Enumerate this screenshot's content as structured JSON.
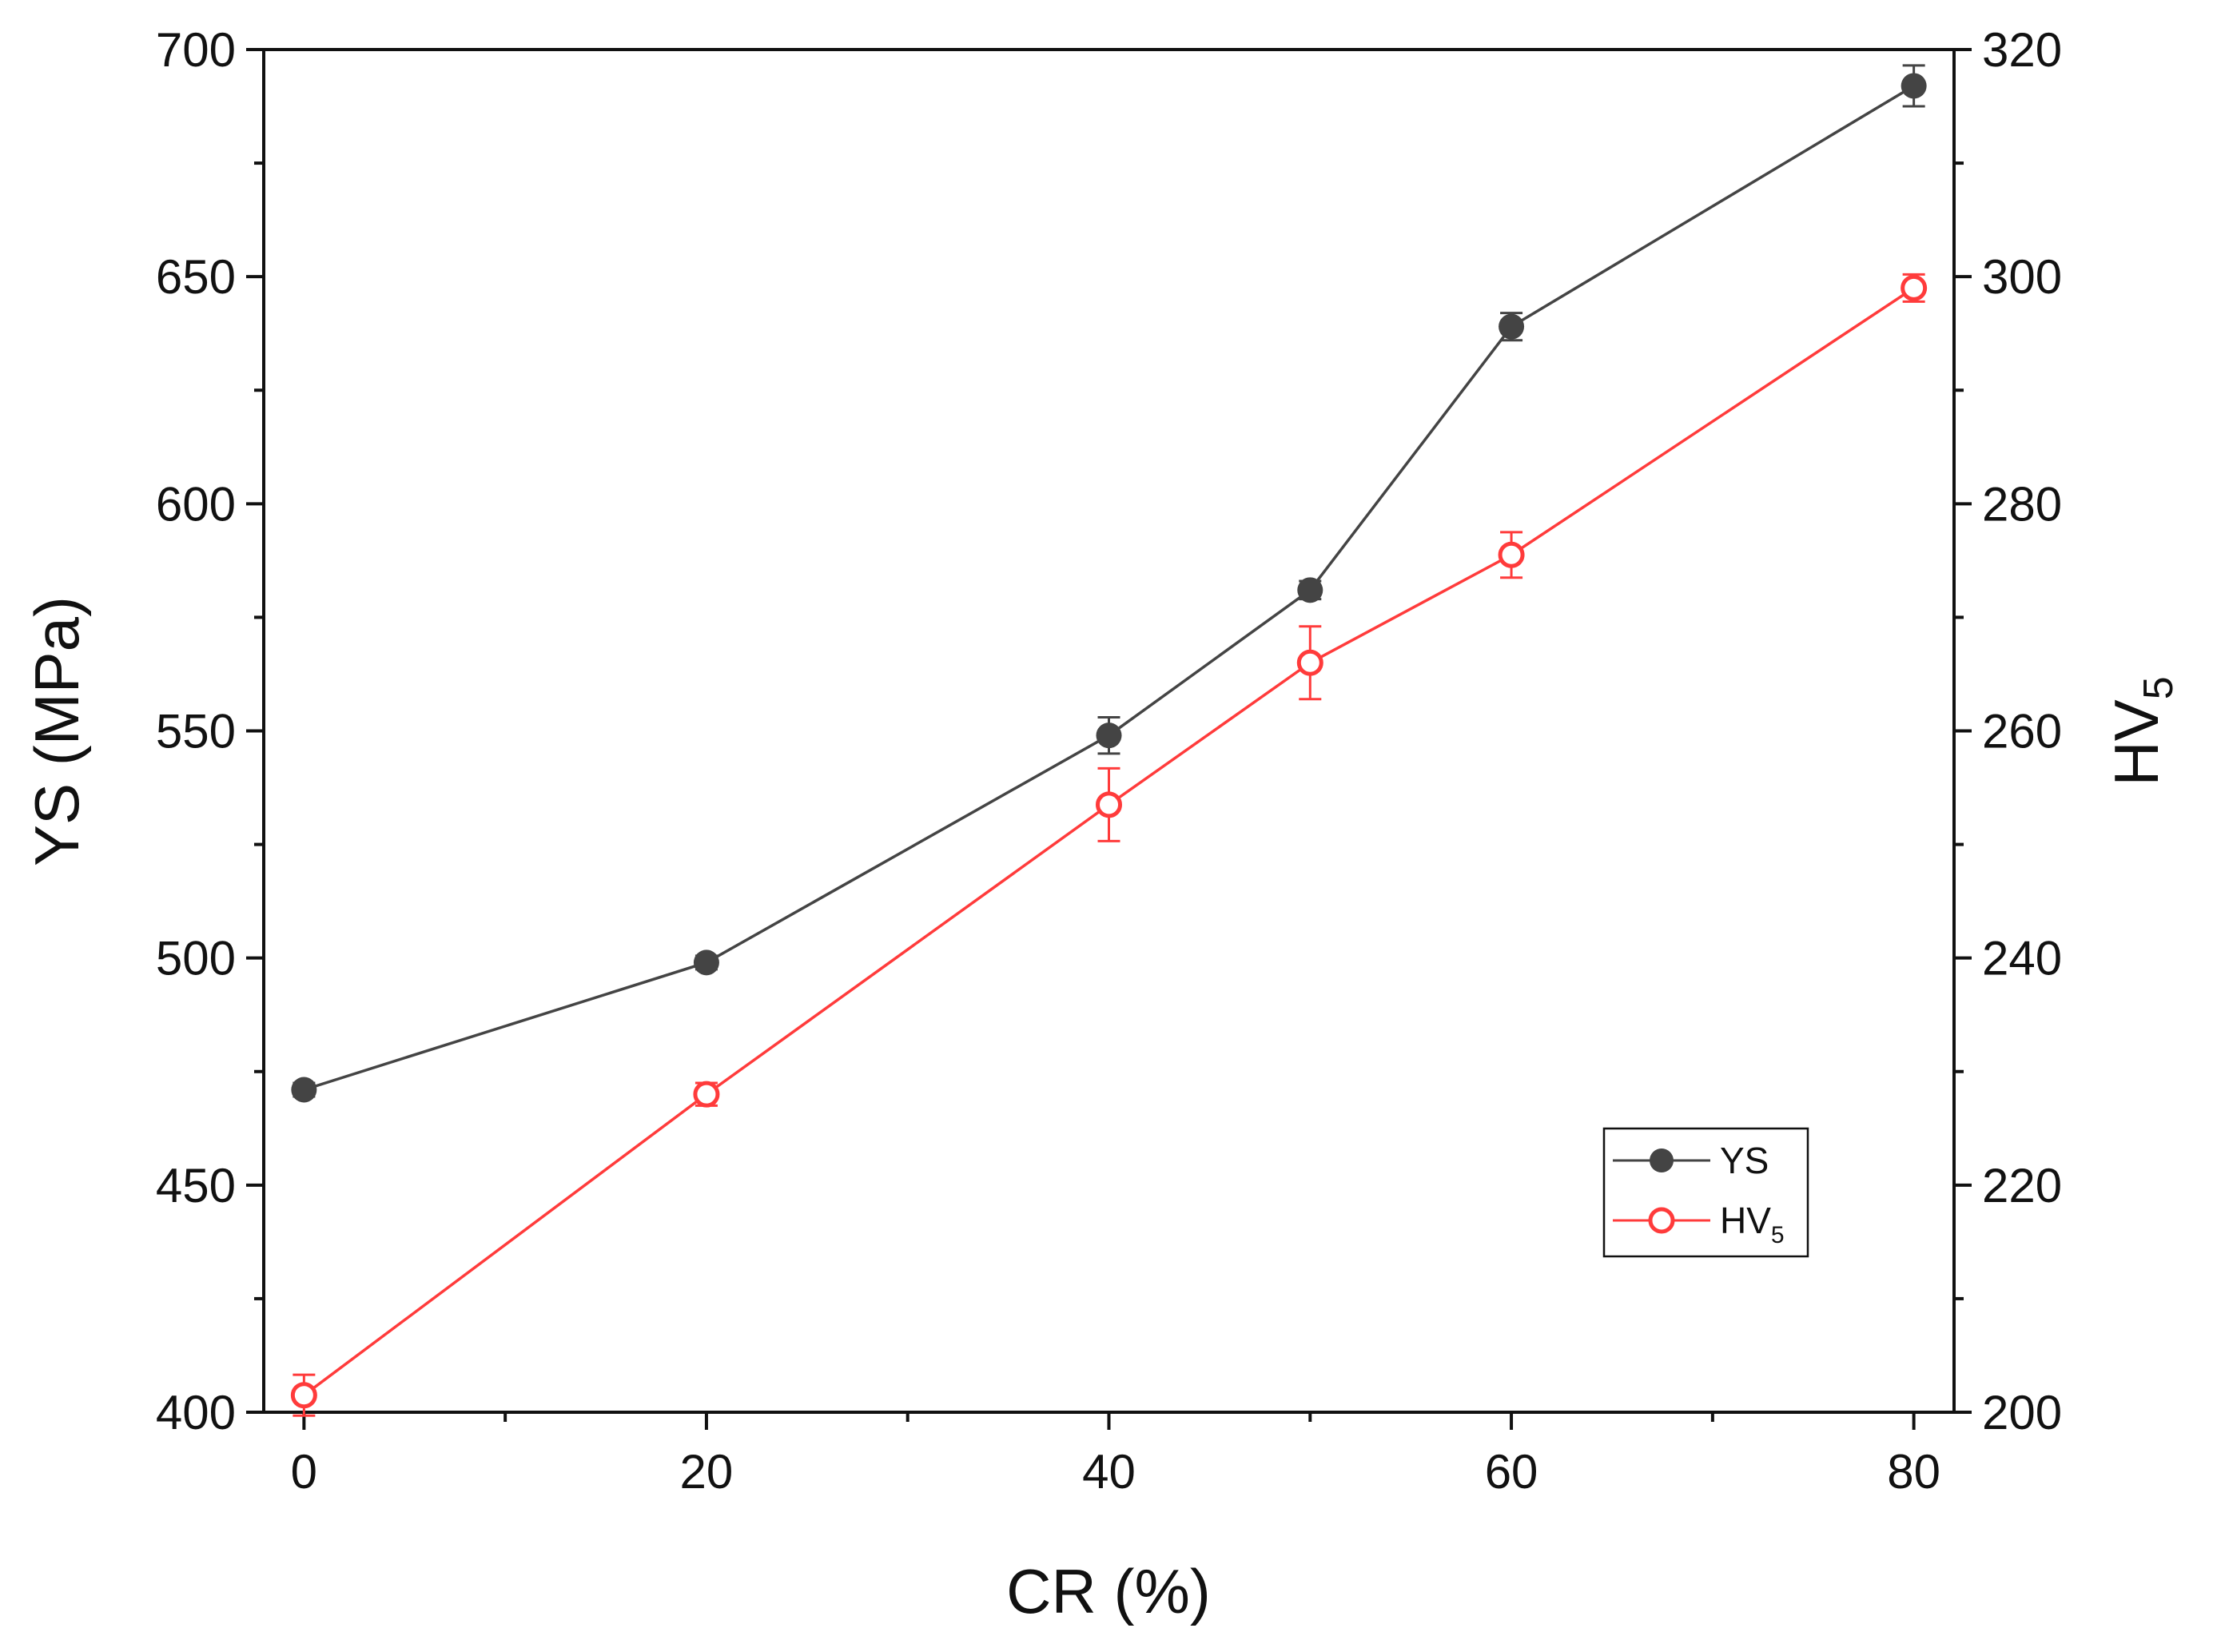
{
  "chart_data": {
    "type": "line",
    "xlabel": "CR (%)",
    "ylabel_left": "YS (MPa)",
    "ylabel_right_base": "HV",
    "ylabel_right_sub": "5",
    "x_ticks": [
      0,
      20,
      40,
      60,
      80
    ],
    "xlim": [
      -2,
      82
    ],
    "ylim_left": [
      400,
      700
    ],
    "y_ticks_left": [
      400,
      450,
      500,
      550,
      600,
      650,
      700
    ],
    "ylim_right": [
      200,
      320
    ],
    "y_ticks_right": [
      200,
      220,
      240,
      260,
      280,
      300,
      320
    ],
    "grid": false,
    "legend_position": "lower-right",
    "series": [
      {
        "name": "YS",
        "label_base": "YS",
        "label_sub": "",
        "axis": "left",
        "color": "#444444",
        "marker": "filled-circle",
        "x": [
          0,
          20,
          40,
          50,
          60,
          80
        ],
        "values": [
          471,
          499,
          549,
          581,
          639,
          692
        ],
        "errors": [
          1.5,
          1.5,
          4,
          2,
          3,
          4.5
        ]
      },
      {
        "name": "HV5",
        "label_base": "HV",
        "label_sub": "5",
        "axis": "right",
        "color": "#ff3b3b",
        "marker": "open-circle",
        "x": [
          0,
          20,
          40,
          50,
          60,
          80
        ],
        "values": [
          201.5,
          228,
          253.5,
          266,
          275.5,
          299
        ],
        "errors": [
          1.8,
          1.0,
          3.2,
          3.2,
          2.0,
          1.2
        ]
      }
    ]
  }
}
